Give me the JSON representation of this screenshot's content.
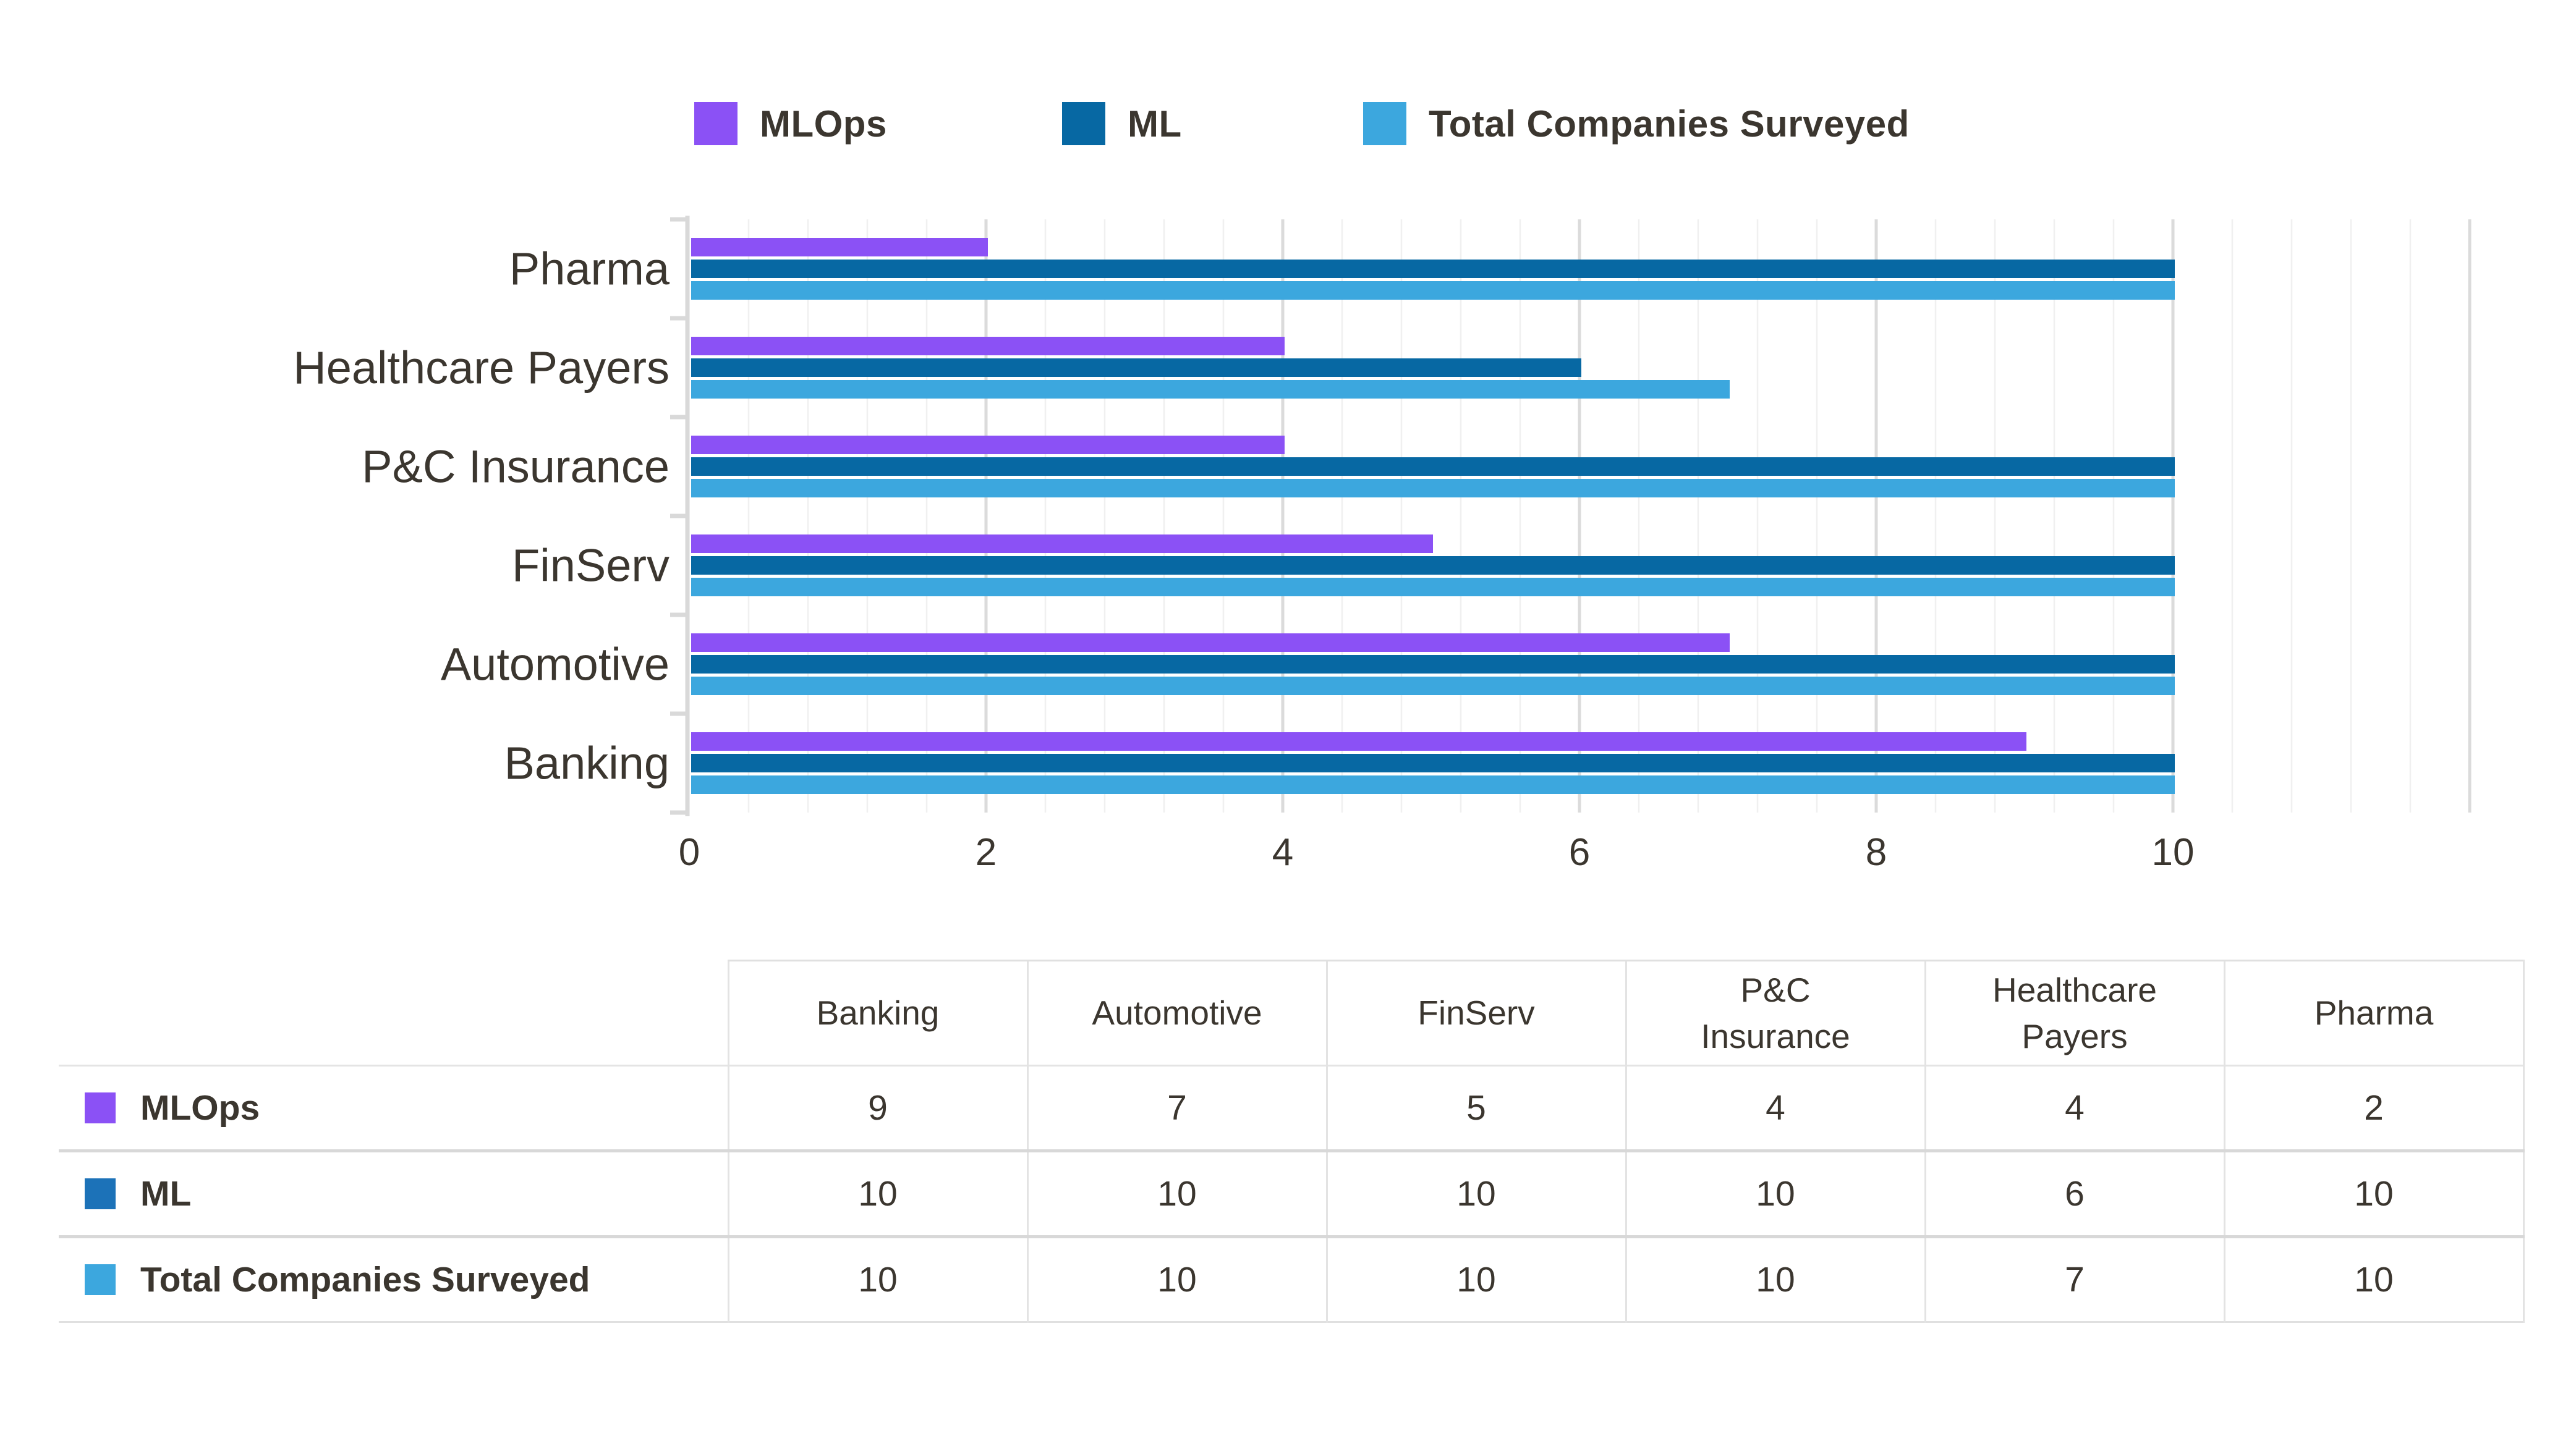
{
  "colors": {
    "mlops_purple": "#8B51F5",
    "ml_dark_blue": "#0768A3",
    "total_light_blue": "#3CA7DE",
    "table_ml_swatch_blue": "#1C72B8",
    "text_dark": "#3B362F",
    "grid_minor": "#F0F0F0",
    "grid_major": "#DBDBDB",
    "axis_gray": "#D9D9D9"
  },
  "legend": {
    "items": [
      {
        "label": "MLOps",
        "color": "#8B51F5"
      },
      {
        "label": "ML",
        "color": "#0768A3"
      },
      {
        "label": "Total Companies Surveyed",
        "color": "#3CA7DE"
      }
    ]
  },
  "chart_data": {
    "type": "bar",
    "orientation": "horizontal",
    "title": "",
    "xlabel": "",
    "ylabel": "",
    "categories": [
      "Pharma",
      "Healthcare Payers",
      "P&C Insurance",
      "FinServ",
      "Automotive",
      "Banking"
    ],
    "series": [
      {
        "name": "MLOps",
        "color": "#8B51F5",
        "values": [
          2,
          4,
          4,
          5,
          7,
          9
        ]
      },
      {
        "name": "ML",
        "color": "#0768A3",
        "values": [
          10,
          6,
          10,
          10,
          10,
          10
        ]
      },
      {
        "name": "Total Companies Surveyed",
        "color": "#3CA7DE",
        "values": [
          10,
          7,
          10,
          10,
          10,
          10
        ]
      }
    ],
    "xlim": [
      0,
      12
    ],
    "x_ticks": [
      0,
      2,
      4,
      6,
      8,
      10
    ],
    "x_minor_step": 0.4,
    "grid": "vertical-minor-and-major",
    "legend_position": "top"
  },
  "table": {
    "column_headers": [
      "Banking",
      "Automotive",
      "FinServ",
      "P&C\nInsurance",
      "Healthcare\nPayers",
      "Pharma"
    ],
    "rows": [
      {
        "label": "MLOps",
        "color": "#8B51F5",
        "values": [
          "9",
          "7",
          "5",
          "4",
          "4",
          "2"
        ]
      },
      {
        "label": "ML",
        "color": "#1C72B8",
        "values": [
          "10",
          "10",
          "10",
          "10",
          "6",
          "10"
        ]
      },
      {
        "label": "Total Companies Surveyed",
        "color": "#3CA7DE",
        "values": [
          "10",
          "10",
          "10",
          "10",
          "7",
          "10"
        ]
      }
    ]
  }
}
